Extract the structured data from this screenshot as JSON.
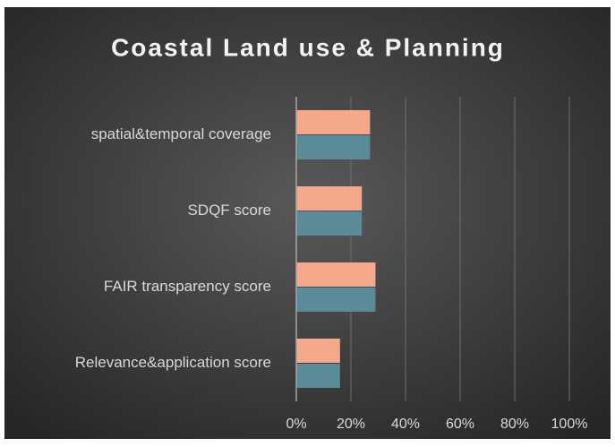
{
  "chart_data": {
    "type": "hbar",
    "title": "Coastal Land use & Planning",
    "categories": [
      "spatial&temporal coverage",
      "SDQF score",
      "FAIR transparency score",
      "Relevance&application score"
    ],
    "series": [
      {
        "color": "#f6a98a",
        "values": [
          27,
          24,
          29,
          16
        ]
      },
      {
        "color": "#5a8b98",
        "values": [
          27,
          24,
          29,
          16
        ]
      }
    ],
    "xlim": [
      0,
      100
    ],
    "xticks": [
      {
        "value": 0,
        "label": "0%"
      },
      {
        "value": 20,
        "label": "20%"
      },
      {
        "value": 40,
        "label": "40%"
      },
      {
        "value": 60,
        "label": "60%"
      },
      {
        "value": 80,
        "label": "80%"
      },
      {
        "value": 100,
        "label": "100%"
      }
    ],
    "grid": true
  }
}
